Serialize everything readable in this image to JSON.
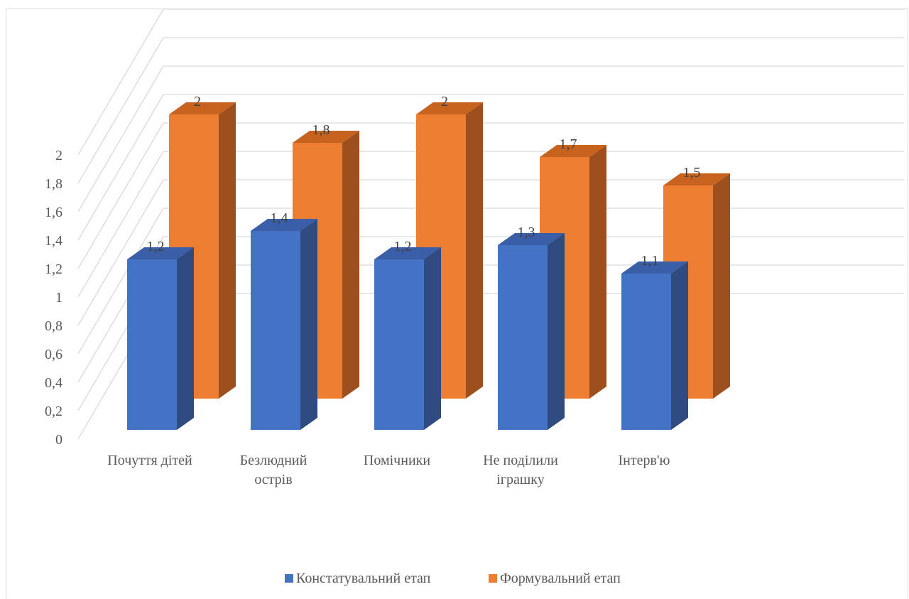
{
  "chart_data": {
    "type": "bar",
    "categories": [
      [
        "Почуття дітей"
      ],
      [
        "Безлюдний",
        "острів"
      ],
      [
        "Помічники"
      ],
      [
        "Не поділили",
        "іграшку"
      ],
      [
        "Інтерв'ю"
      ]
    ],
    "series": [
      {
        "name": "Констатувальний етап",
        "values": [
          1.2,
          1.4,
          1.2,
          1.3,
          1.1
        ],
        "labels": [
          "1,2",
          "1,4",
          "1,2",
          "1,3",
          "1,1"
        ],
        "color": "#4472C4",
        "side_color": "#2F4B80",
        "top_color": "#3A5EA8"
      },
      {
        "name": "Формувальний етап",
        "values": [
          2,
          1.8,
          2,
          1.7,
          1.5
        ],
        "labels": [
          "2",
          "1,8",
          "2",
          "1,7",
          "1,5"
        ],
        "color": "#ED7D31",
        "side_color": "#9E4F1E",
        "top_color": "#C8621F"
      }
    ],
    "ylim": [
      0,
      2
    ],
    "yticks": [
      "0",
      "0,2",
      "0,4",
      "0,6",
      "0,8",
      "1",
      "1,2",
      "1,4",
      "1,6",
      "1,8",
      "2"
    ],
    "grid": true,
    "legend": "bottom",
    "style": "3d-clustered-column"
  }
}
